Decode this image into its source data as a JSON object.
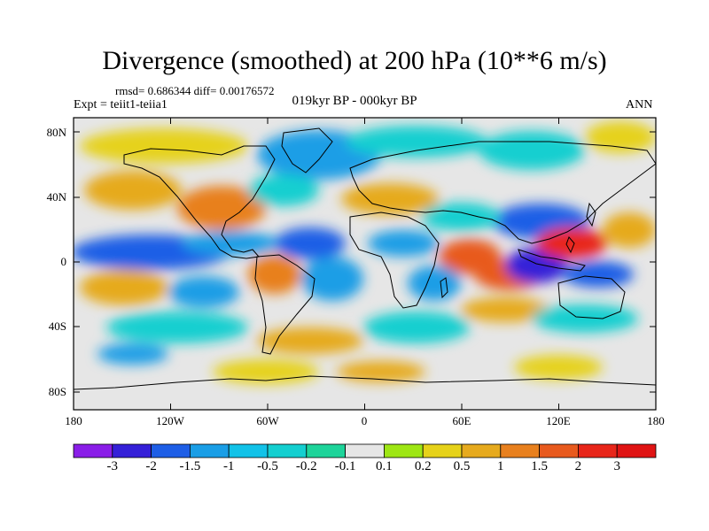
{
  "title": "Divergence (smoothed) at 200 hPa (10**6 m/s)",
  "stats_text": "rmsd= 0.686344 diff= 0.00176572",
  "expt_text": "Expt = teiit1-teiia1",
  "period_text": "019kyr BP - 000kyr BP",
  "season_text": "ANN",
  "map": {
    "lat_ticks": [
      "80N",
      "40N",
      "0",
      "40S",
      "80S"
    ],
    "lon_ticks": [
      "180",
      "120W",
      "60W",
      "0",
      "60E",
      "120E",
      "180"
    ],
    "colorbar": {
      "labels": [
        "-3",
        "-2",
        "-1.5",
        "-1",
        "-0.5",
        "-0.2",
        "-0.1",
        "0.1",
        "0.2",
        "0.5",
        "1",
        "1.5",
        "2",
        "3"
      ],
      "colors": [
        "#8a1ee8",
        "#3520d8",
        "#1e5ee6",
        "#1a9ee6",
        "#12c2e8",
        "#14cfd0",
        "#1ed49a",
        "#e6e6e6",
        "#9ee614",
        "#e6d21a",
        "#e6aa1e",
        "#e8801e",
        "#e85a1e",
        "#e8261a",
        "#e01414"
      ]
    }
  }
}
